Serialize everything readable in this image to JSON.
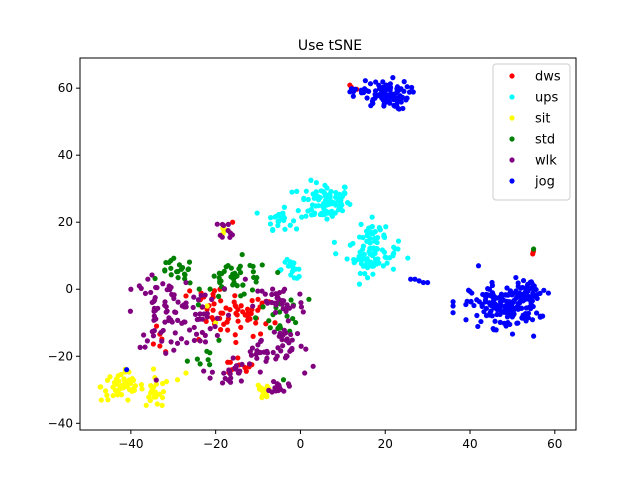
{
  "chart_data": {
    "type": "scatter",
    "title": "Use tSNE",
    "xlabel": "",
    "ylabel": "",
    "xlim": [
      -52,
      65
    ],
    "ylim": [
      -42,
      69
    ],
    "xticks": [
      -40,
      -20,
      0,
      20,
      40,
      60
    ],
    "yticks": [
      -40,
      -20,
      0,
      20,
      40,
      60
    ],
    "grid": false,
    "legend_position": "top-right",
    "series": [
      {
        "name": "dws",
        "color": "#ff0000",
        "clusters": [
          {
            "cx": -14,
            "cy": -8,
            "sx": 4,
            "sy": 3,
            "n": 50
          },
          {
            "cx": -22,
            "cy": -3,
            "sx": 2,
            "sy": 2,
            "n": 12
          },
          {
            "cx": -15,
            "cy": -23,
            "sx": 2,
            "sy": 1.5,
            "n": 10
          },
          {
            "cx": -33,
            "cy": -16,
            "sx": 1.5,
            "sy": 2,
            "n": 6
          },
          {
            "cx": 12,
            "cy": 60,
            "sx": 0.6,
            "sy": 0.6,
            "n": 3
          },
          {
            "cx": 55,
            "cy": 11,
            "sx": 0.5,
            "sy": 0.5,
            "n": 2
          }
        ],
        "points": [
          [
            -16,
            20
          ],
          [
            -27,
            -2
          ],
          [
            -10,
            -3
          ],
          [
            -6,
            -10
          ],
          [
            -24,
            -15
          ]
        ]
      },
      {
        "name": "ups",
        "color": "#00ffff",
        "clusters": [
          {
            "cx": 6,
            "cy": 26,
            "sx": 3,
            "sy": 3,
            "n": 90
          },
          {
            "cx": -5,
            "cy": 21,
            "sx": 1.5,
            "sy": 1.5,
            "n": 25
          },
          {
            "cx": 17,
            "cy": 17,
            "sx": 1.5,
            "sy": 2,
            "n": 22
          },
          {
            "cx": 17,
            "cy": 10,
            "sx": 3,
            "sy": 2.5,
            "n": 70
          },
          {
            "cx": -2,
            "cy": 6,
            "sx": 1.8,
            "sy": 1.5,
            "n": 18
          }
        ],
        "points": [
          [
            -2,
            29
          ],
          [
            8,
            14
          ],
          [
            23,
            12
          ]
        ]
      },
      {
        "name": "sit",
        "color": "#ffff00",
        "clusters": [
          {
            "cx": -42,
            "cy": -29,
            "sx": 2.5,
            "sy": 2.2,
            "n": 55
          },
          {
            "cx": -34,
            "cy": -31,
            "sx": 1.5,
            "sy": 2.2,
            "n": 22
          },
          {
            "cx": -9,
            "cy": -31,
            "sx": 1,
            "sy": 1.6,
            "n": 14
          },
          {
            "cx": -18,
            "cy": 17,
            "sx": 0.6,
            "sy": 0.6,
            "n": 4
          }
        ],
        "points": [
          [
            -27,
            -25
          ],
          [
            -29,
            -27
          ],
          [
            -20,
            -10
          ],
          [
            -22,
            -5
          ]
        ]
      },
      {
        "name": "std",
        "color": "#008000",
        "clusters": [
          {
            "cx": -29,
            "cy": 5,
            "sx": 2,
            "sy": 2,
            "n": 20
          },
          {
            "cx": -15,
            "cy": 3,
            "sx": 4,
            "sy": 3,
            "n": 45
          },
          {
            "cx": -5,
            "cy": -8,
            "sx": 2.5,
            "sy": 2.5,
            "n": 18
          },
          {
            "cx": -21,
            "cy": -20,
            "sx": 3,
            "sy": 2,
            "n": 8
          }
        ],
        "points": [
          [
            55,
            12
          ],
          [
            -4,
            -27
          ],
          [
            2,
            -3
          ],
          [
            -31,
            8
          ]
        ]
      },
      {
        "name": "wlk",
        "color": "#800080",
        "clusters": [
          {
            "cx": -32,
            "cy": -7,
            "sx": 3.5,
            "sy": 5,
            "n": 70
          },
          {
            "cx": -24,
            "cy": -10,
            "sx": 3,
            "sy": 5,
            "n": 30
          },
          {
            "cx": -5,
            "cy": -4,
            "sx": 3,
            "sy": 3,
            "n": 35
          },
          {
            "cx": -3,
            "cy": -16,
            "sx": 2,
            "sy": 3,
            "n": 28
          },
          {
            "cx": -9,
            "cy": -19,
            "sx": 2.5,
            "sy": 2,
            "n": 20
          },
          {
            "cx": -17,
            "cy": -25,
            "sx": 2,
            "sy": 2.5,
            "n": 22
          },
          {
            "cx": -5,
            "cy": -29,
            "sx": 1,
            "sy": 1,
            "n": 15
          },
          {
            "cx": -17,
            "cy": 18,
            "sx": 1,
            "sy": 1.3,
            "n": 10
          }
        ],
        "points": [
          [
            -40,
            0
          ],
          [
            -38,
            1
          ],
          [
            -36,
            3
          ],
          [
            -27,
            2
          ],
          [
            3,
            -23
          ],
          [
            1,
            -25
          ],
          [
            -13,
            3
          ]
        ]
      },
      {
        "name": "jog",
        "color": "#0000ff",
        "clusters": [
          {
            "cx": 20,
            "cy": 58,
            "sx": 2.8,
            "sy": 2.2,
            "n": 80
          },
          {
            "cx": 14,
            "cy": 59,
            "sx": 1.2,
            "sy": 1.5,
            "n": 12
          },
          {
            "cx": 48,
            "cy": -5,
            "sx": 4,
            "sy": 3.2,
            "n": 170
          },
          {
            "cx": 54,
            "cy": -1,
            "sx": 2,
            "sy": 2,
            "n": 35
          }
        ],
        "points": [
          [
            26,
            3
          ],
          [
            27,
            3
          ],
          [
            28,
            2.5
          ],
          [
            29,
            2
          ],
          [
            30,
            2
          ],
          [
            36,
            -5
          ],
          [
            36,
            -7
          ],
          [
            42,
            7
          ],
          [
            55,
            -14
          ],
          [
            -41,
            -24
          ]
        ]
      }
    ]
  }
}
